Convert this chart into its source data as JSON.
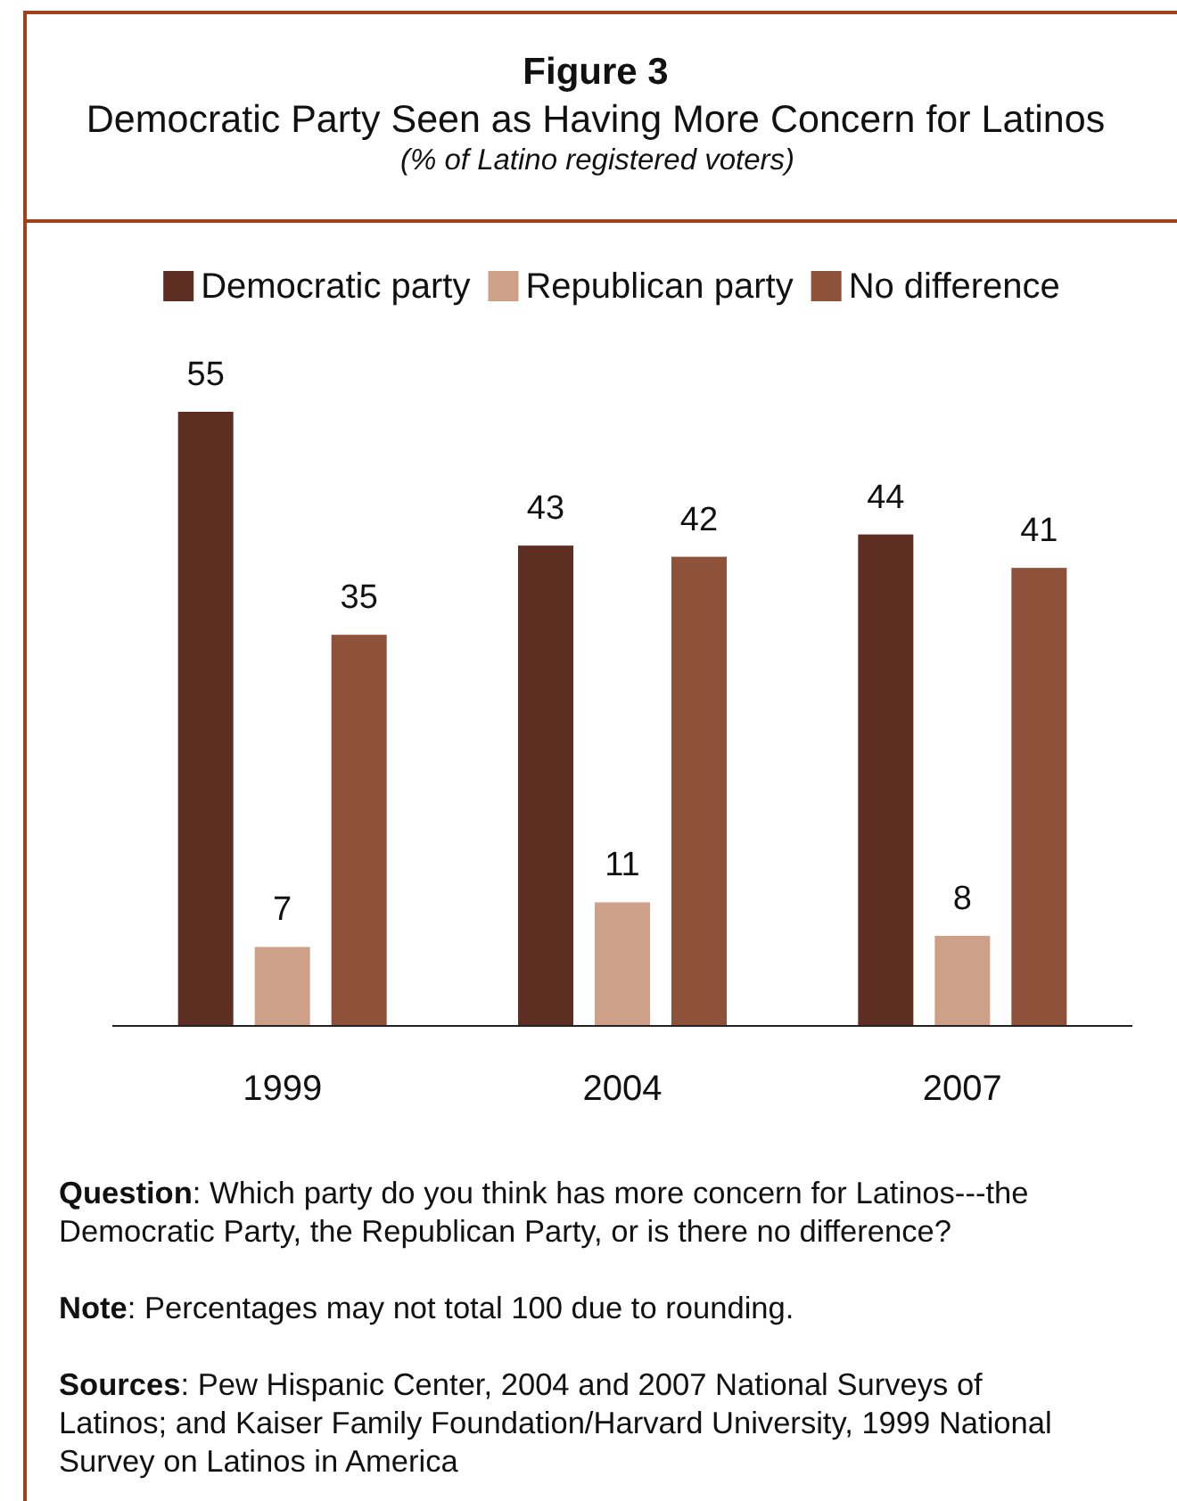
{
  "chart_data": {
    "type": "bar",
    "title": "Figure 3",
    "subtitle": "Democratic Party Seen as Having More Concern for Latinos",
    "categories": [
      "1999",
      "2004",
      "2007"
    ],
    "series": [
      {
        "name": "Democratic party",
        "color": "#5e2e22",
        "values": [
          55,
          43,
          44
        ]
      },
      {
        "name": "Republican party",
        "color": "#cfa088",
        "values": [
          7,
          11,
          8
        ]
      },
      {
        "name": "No difference",
        "color": "#8e523a",
        "values": [
          35,
          42,
          41
        ]
      }
    ],
    "data_labels": true,
    "legend": "top",
    "annotations": [
      "(% of Latino registered voters)",
      "Question: Which party do you think has more concern for Latinos---the Democratic Party, the Republican Party, or is there no difference?",
      "Note: Percentages may not total 100 due to rounding.",
      "Sources: Pew Hispanic Center, 2004 and 2007 National Surveys of Latinos; and Kaiser Family Foundation/Harvard University, 1999 National Survey on Latinos in America"
    ]
  }
}
